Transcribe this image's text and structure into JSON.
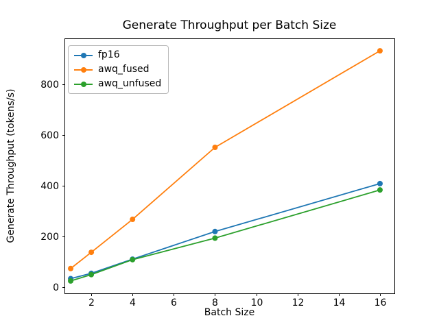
{
  "chart_data": {
    "type": "line",
    "title": "Generate Throughput per Batch Size",
    "xlabel": "Batch Size",
    "ylabel": "Generate Throughput (tokens/s)",
    "x": [
      1,
      2,
      4,
      8,
      16
    ],
    "series": [
      {
        "name": "fp16",
        "color": "#1f77b4",
        "values": [
          34,
          55,
          111,
          220,
          409
        ]
      },
      {
        "name": "awq_fused",
        "color": "#ff7f0e",
        "values": [
          74,
          138,
          268,
          552,
          933
        ]
      },
      {
        "name": "awq_unfused",
        "color": "#2ca02c",
        "values": [
          25,
          50,
          109,
          194,
          384
        ]
      }
    ],
    "xticks": [
      2,
      4,
      6,
      8,
      10,
      12,
      14,
      16
    ],
    "yticks": [
      0,
      200,
      400,
      600,
      800
    ],
    "xlim": [
      0.7,
      16.7
    ],
    "ylim": [
      -24,
      982
    ],
    "legend_position": "upper left",
    "grid": false,
    "marker": "circle",
    "line_width": 1.8,
    "marker_radius": 4,
    "axis_color": "#000000",
    "background": "#ffffff"
  }
}
